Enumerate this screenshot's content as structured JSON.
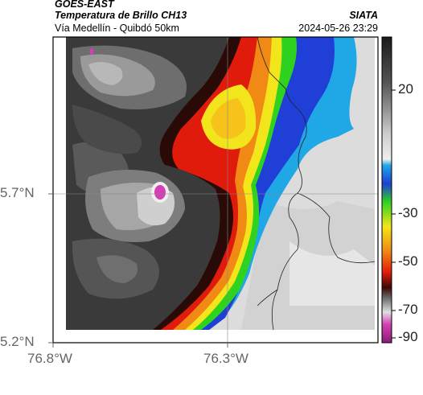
{
  "header": {
    "satellite": "GOES-EAST",
    "product": "Temperatura de Brillo CH13",
    "route": "Vía Medellín - Quibdó 50km",
    "agency": "SIATA",
    "datetime": "2024-05-26 23:29"
  },
  "map": {
    "lat_ticks": [
      "5.7°N",
      "5.2°N"
    ],
    "lon_ticks": [
      "76.8°W",
      "76.3°W"
    ]
  },
  "colorbar": {
    "tick_labels": [
      "20",
      "-30",
      "-50",
      "-70",
      "-90"
    ]
  },
  "colors": {
    "warm_gray": "#d9d9d9",
    "cloud_dark": "#3a3a3a",
    "ring_red": "#e11b0c",
    "ring_yellow": "#f2e51b",
    "ring_green": "#2fd21f",
    "ring_blue": "#1f3fd6",
    "cyan": "#1fa7e6",
    "magenta": "#d43fb3"
  }
}
